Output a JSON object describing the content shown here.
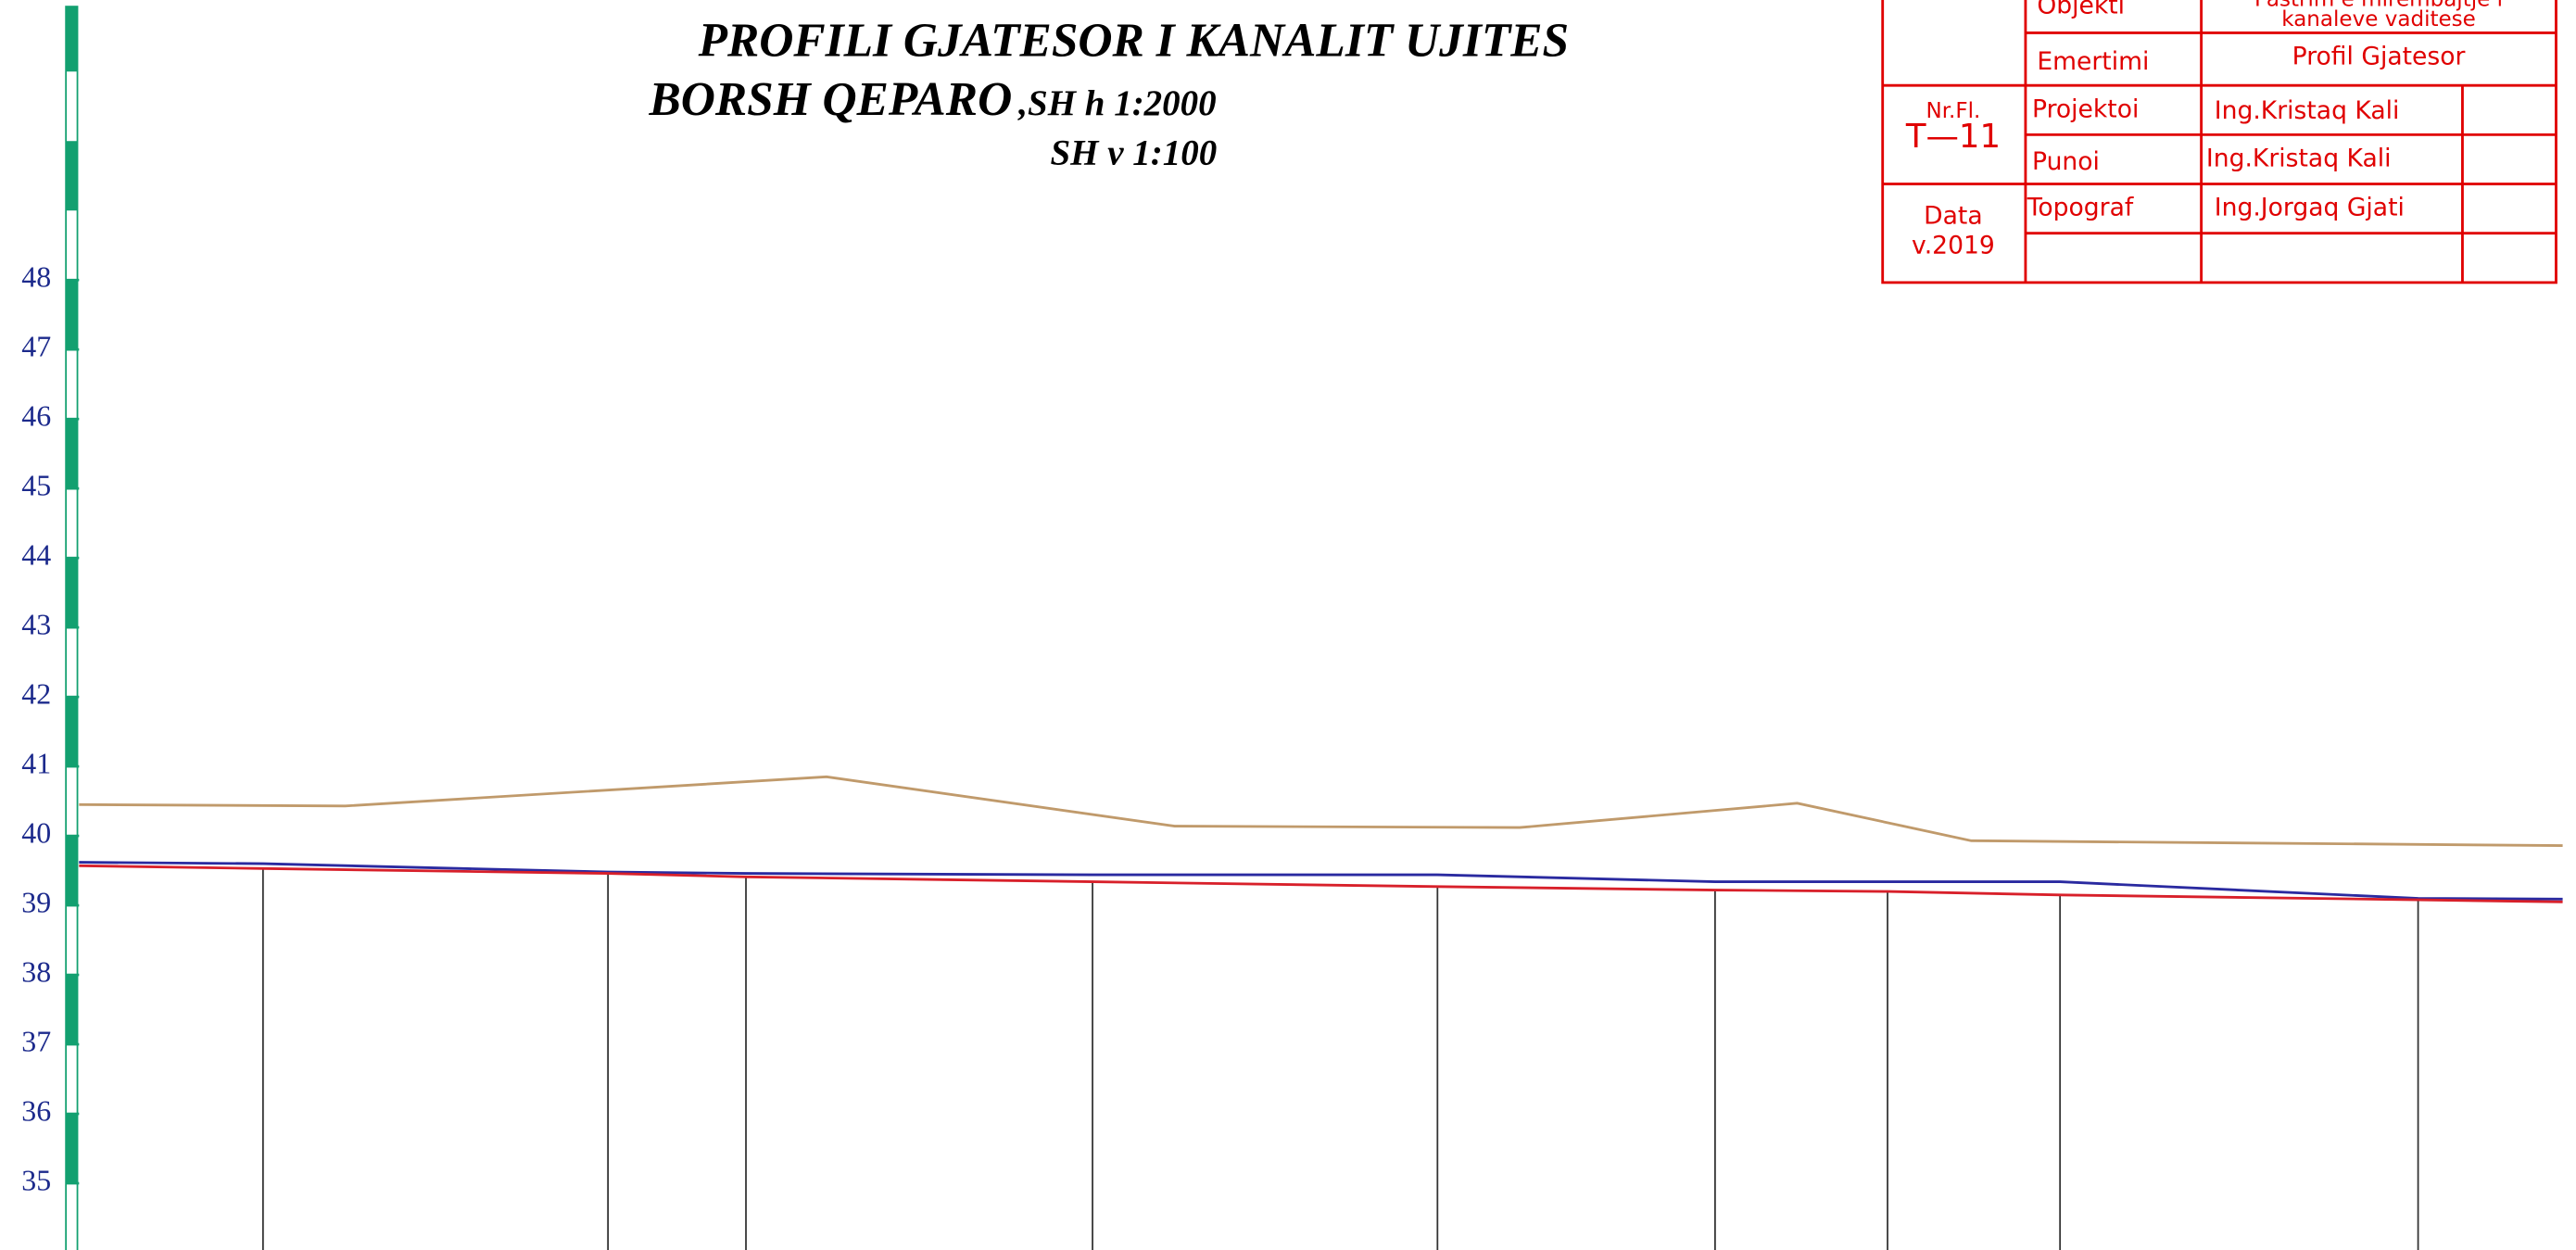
{
  "chart_data": {
    "type": "line",
    "title": "PROFILI GJATESOR I KANALIT UJITES",
    "subtitle": "BORSH QEPARO",
    "scale_h": ",SH h 1:2000",
    "scale_v": "SH v 1:100",
    "xlim": [
      0,
      1512
    ],
    "ylim": [
      34.04,
      52.03
    ],
    "yticks": [
      35,
      36,
      37,
      38,
      39,
      40,
      41,
      42,
      43,
      44,
      45,
      46,
      47,
      48
    ],
    "series": [
      {
        "color": "#c09a6b",
        "x": [
          0,
          162,
          455,
          667,
          877,
          1046,
          1152,
          1512
        ],
        "values": [
          40.45,
          40.43,
          40.85,
          40.14,
          40.12,
          40.47,
          39.93,
          39.86
        ]
      },
      {
        "color": "#2a2aa0",
        "x": [
          0,
          112,
          322,
          406,
          617,
          827,
          996,
          1206,
          1424,
          1512
        ],
        "values": [
          39.62,
          39.6,
          39.48,
          39.46,
          39.44,
          39.44,
          39.34,
          39.34,
          39.1,
          39.09
        ]
      },
      {
        "color": "#d8202a",
        "x": [
          0,
          112,
          322,
          406,
          617,
          827,
          996,
          1101,
          1206,
          1424,
          1512
        ],
        "values": [
          39.57,
          39.53,
          39.46,
          39.41,
          39.34,
          39.27,
          39.22,
          39.2,
          39.15,
          39.08,
          39.05
        ]
      }
    ]
  },
  "title_block": {
    "object_label": "Objekti",
    "object_line1": "Pastrim e mirembajtje i",
    "object_line2": "kanaleve vaditese",
    "name_label": "Emertimi",
    "name_value": "Profil Gjatesor",
    "sheet_label": "Nr.Fl.",
    "sheet_value": "T—11",
    "designer_label": "Projektoi",
    "designer_value": "Ing.Kristaq  Kali",
    "worker_label": "Punoi",
    "worker_value": "Ing.Kristaq  Kali",
    "date_label": "Data",
    "date_value": "v.2019",
    "surveyor_label": "Topograf",
    "surveyor_value": "Ing.Jorgaq  Gjati"
  }
}
